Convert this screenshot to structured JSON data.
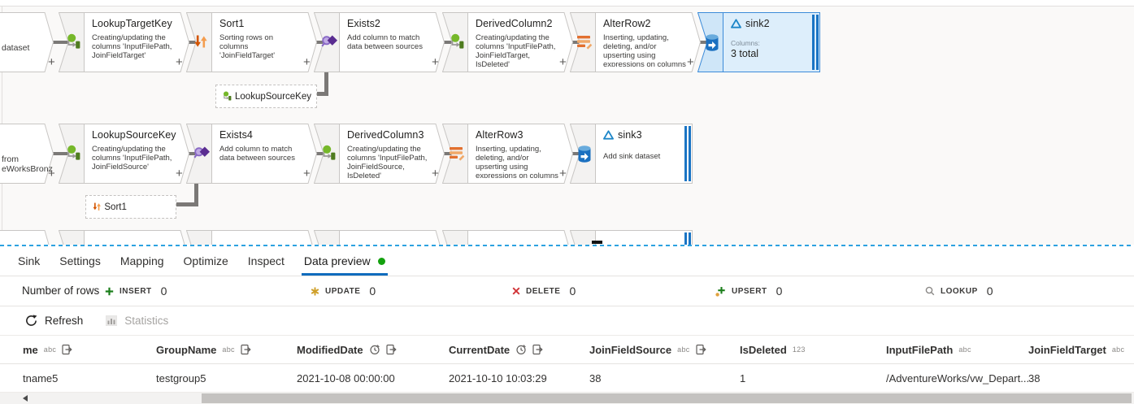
{
  "colors": {
    "accent": "#0f6cbd",
    "selection_fill": "#ddeefb",
    "selection_border": "#3c8bd9",
    "sink_end_bar": "#1a74c4",
    "connector": "#7b7977",
    "status_dot": "#13a10e",
    "insert_icon": "#1b7e1b",
    "update_icon": "#cf9f28",
    "delete_icon": "#d13438",
    "dashed_divider": "#2da2e0"
  },
  "canvas": {
    "partial_third_row": true,
    "rows": [
      {
        "nodes": [
          {
            "kind": "source",
            "lines": [
              "dataset"
            ]
          },
          {
            "kind": "step",
            "icon": "lookup",
            "title": "LookupTargetKey",
            "desc": "Creating/updating the columns 'InputFilePath, JoinFieldTarget'"
          },
          {
            "kind": "step",
            "icon": "sort",
            "title": "Sort1",
            "desc": "Sorting rows on columns 'JoinFieldTarget'"
          },
          {
            "kind": "step",
            "icon": "exists",
            "title": "Exists2",
            "desc": "Add column to match data between sources"
          },
          {
            "kind": "step",
            "icon": "derived",
            "title": "DerivedColumn2",
            "desc": "Creating/updating the columns 'InputFilePath, JoinFieldTarget, IsDeleted'"
          },
          {
            "kind": "step",
            "icon": "alterrow",
            "title": "AlterRow2",
            "desc": "Inserting, updating, deleting, and/or upserting using expressions on columns"
          },
          {
            "kind": "sink",
            "icon": "sinkdb",
            "title": "sink2",
            "selected": true,
            "columns_label": "Columns:",
            "columns_value": "3 total"
          }
        ]
      },
      {
        "nodes": [
          {
            "kind": "source",
            "lines": [
              "from",
              "eWorksBronz"
            ]
          },
          {
            "kind": "step",
            "icon": "lookup",
            "title": "LookupSourceKey",
            "desc": "Creating/updating the columns 'InputFilePath, JoinFieldSource'"
          },
          {
            "kind": "step",
            "icon": "exists",
            "title": "Exists4",
            "desc": "Add column to match data between sources"
          },
          {
            "kind": "step",
            "icon": "derived",
            "title": "DerivedColumn3",
            "desc": "Creating/updating the columns 'InputFilePath, JoinFieldSource, IsDeleted'"
          },
          {
            "kind": "step",
            "icon": "alterrow",
            "title": "AlterRow3",
            "desc": "Inserting, updating, deleting, and/or upserting using expressions on columns"
          },
          {
            "kind": "sink",
            "icon": "sinkdb",
            "title": "sink3",
            "desc": "Add sink dataset"
          }
        ]
      }
    ],
    "refs": [
      {
        "icon": "lookup",
        "label": "LookupSourceKey"
      },
      {
        "icon": "sort",
        "label": "Sort1"
      }
    ]
  },
  "panel": {
    "tabs": [
      {
        "label": "Sink"
      },
      {
        "label": "Settings"
      },
      {
        "label": "Mapping"
      },
      {
        "label": "Optimize"
      },
      {
        "label": "Inspect"
      },
      {
        "label": "Data preview",
        "active": true,
        "has_status_dot": true
      }
    ],
    "rows_label": "Number of rows",
    "counters": [
      {
        "icon": "insert",
        "label": "INSERT",
        "value": "0"
      },
      {
        "icon": "update",
        "label": "UPDATE",
        "value": "0"
      },
      {
        "icon": "delete",
        "label": "DELETE",
        "value": "0"
      },
      {
        "icon": "upsert",
        "label": "UPSERT",
        "value": "0"
      },
      {
        "icon": "lookup",
        "label": "LOOKUP",
        "value": "0"
      }
    ],
    "toolbar": {
      "refresh": "Refresh",
      "statistics": "Statistics"
    },
    "table": {
      "columns": [
        {
          "name": "me",
          "badge": "abc",
          "copy": true
        },
        {
          "name": "GroupName",
          "badge": "abc",
          "copy": true
        },
        {
          "name": "ModifiedDate",
          "badge": "clock",
          "copy": true
        },
        {
          "name": "CurrentDate",
          "badge": "clock",
          "copy": true
        },
        {
          "name": "JoinFieldSource",
          "badge": "abc",
          "copy": true
        },
        {
          "name": "IsDeleted",
          "badge": "123",
          "copy": false
        },
        {
          "name": "InputFilePath",
          "badge": "abc",
          "copy": false
        },
        {
          "name": "JoinFieldTarget",
          "badge": "abc",
          "copy": false
        }
      ],
      "row": [
        "tname5",
        "testgroup5",
        "2021-10-08 00:00:00",
        "2021-10-10 10:03:29",
        "38",
        "1",
        "/AdventureWorks/vw_Depart...",
        "38"
      ]
    }
  }
}
